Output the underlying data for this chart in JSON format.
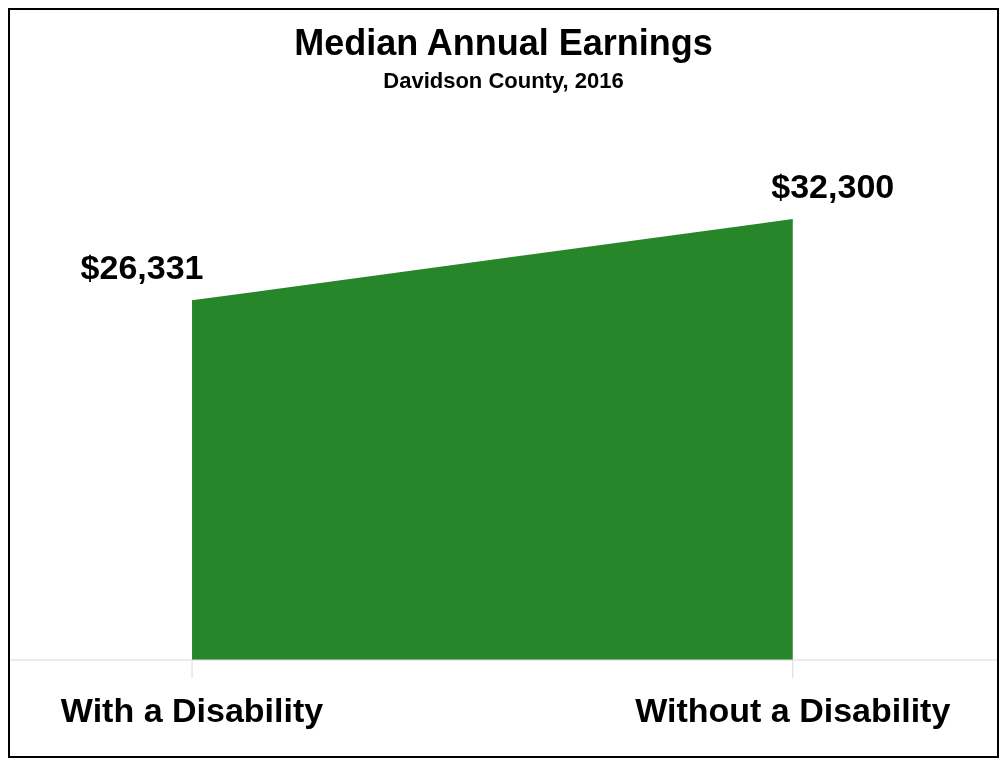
{
  "chart_data": {
    "type": "area",
    "title": "Median Annual Earnings",
    "subtitle": "Davidson County, 2016",
    "categories": [
      "With a Disability",
      "Without a Disability"
    ],
    "values": [
      26331,
      32300
    ],
    "color": "#27862a",
    "value_labels": [
      "$26,331",
      "$32,300"
    ]
  }
}
